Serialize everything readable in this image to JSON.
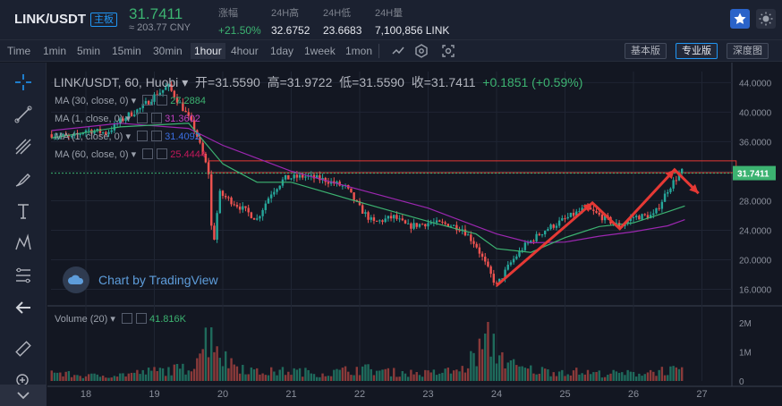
{
  "header": {
    "pair": "LINK/USDT",
    "board": "主板",
    "price": "31.7411",
    "cny": "≈ 203.77 CNY",
    "stats": [
      {
        "label": "涨幅",
        "value": "+21.50%",
        "up": true
      },
      {
        "label": "24H高",
        "value": "32.6752",
        "up": false
      },
      {
        "label": "24H低",
        "value": "23.6683",
        "up": false
      },
      {
        "label": "24H量",
        "value": "7,100,856 LINK",
        "up": false
      }
    ]
  },
  "toolbar": {
    "timeframes": [
      "Time",
      "1min",
      "5min",
      "15min",
      "30min",
      "1hour",
      "4hour",
      "1day",
      "1week",
      "1mon"
    ],
    "active_timeframe": "1hour",
    "modes": [
      "基本版",
      "专业版",
      "深度图"
    ],
    "active_mode": "专业版"
  },
  "legend": {
    "symbol": "LINK/USDT, 60, Huobi",
    "open_label": "开=",
    "open": "31.5590",
    "high_label": "高=",
    "high": "31.9722",
    "low_label": "低=",
    "low": "31.5590",
    "close_label": "收=",
    "close": "31.7411",
    "change": "+0.1851 (+0.59%)"
  },
  "ma_rows": [
    {
      "label": "MA (30, close, 0)",
      "value": "27.2884",
      "color": "#3cb371"
    },
    {
      "label": "MA (1, close, 0)",
      "value": "31.3602",
      "color": "#c040c0"
    },
    {
      "label": "MA (1, close, 0)",
      "value": "31.4092",
      "color": "#3a6ee0"
    },
    {
      "label": "MA (60, close, 0)",
      "value": "25.4444",
      "color": "#c2185b"
    }
  ],
  "volume_legend": {
    "label": "Volume (20)",
    "value": "41.816K"
  },
  "watermark": "Chart by TradingView",
  "colors": {
    "up": "#26a69a",
    "down": "#ef5350",
    "price_line": "#3cb371",
    "annotation": "#e53935",
    "grid": "#1f2533"
  },
  "chart_data": {
    "type": "candlestick",
    "title": "LINK/USDT, 60, Huobi",
    "x_ticks": [
      "18",
      "19",
      "20",
      "21",
      "22",
      "23",
      "24",
      "25",
      "26",
      "27"
    ],
    "y_ticks": [
      "44.0000",
      "40.0000",
      "36.0000",
      "32.0000",
      "28.0000",
      "24.0000",
      "20.0000",
      "16.0000"
    ],
    "ylim": [
      14.0,
      45.5
    ],
    "volume_ticks": [
      "2M",
      "1M",
      "0"
    ],
    "volume_ylim": [
      0,
      2500000
    ],
    "last_price": "31.7411",
    "series_close_path": [
      [
        17.5,
        37.0
      ],
      [
        17.8,
        36.5
      ],
      [
        18.0,
        37.6
      ],
      [
        18.3,
        37.2
      ],
      [
        18.6,
        39.5
      ],
      [
        18.8,
        40.5
      ],
      [
        19.0,
        42.2
      ],
      [
        19.2,
        43.5
      ],
      [
        19.4,
        40.8
      ],
      [
        19.6,
        37.5
      ],
      [
        19.8,
        31.5
      ],
      [
        19.85,
        21.0
      ],
      [
        19.95,
        29.0
      ],
      [
        20.2,
        27.5
      ],
      [
        20.5,
        25.5
      ],
      [
        20.7,
        29.0
      ],
      [
        20.9,
        31.0
      ],
      [
        21.2,
        31.3
      ],
      [
        21.5,
        30.8
      ],
      [
        21.8,
        29.8
      ],
      [
        22.0,
        27.0
      ],
      [
        22.2,
        25.0
      ],
      [
        22.5,
        25.8
      ],
      [
        22.7,
        24.5
      ],
      [
        23.0,
        25.0
      ],
      [
        23.3,
        24.8
      ],
      [
        23.5,
        24.2
      ],
      [
        23.7,
        22.0
      ],
      [
        23.9,
        18.2
      ],
      [
        24.0,
        16.5
      ],
      [
        24.2,
        19.5
      ],
      [
        24.4,
        21.8
      ],
      [
        24.7,
        24.0
      ],
      [
        25.0,
        25.5
      ],
      [
        25.3,
        27.0
      ],
      [
        25.5,
        26.0
      ],
      [
        25.8,
        24.5
      ],
      [
        26.0,
        25.8
      ],
      [
        26.3,
        26.0
      ],
      [
        26.5,
        29.5
      ],
      [
        26.7,
        32.0
      ],
      [
        26.75,
        31.74
      ]
    ],
    "ma30_path": [
      [
        17.5,
        36.5
      ],
      [
        18.5,
        38.0
      ],
      [
        19.5,
        38.5
      ],
      [
        20.0,
        33.0
      ],
      [
        20.5,
        30.5
      ],
      [
        21.0,
        30.5
      ],
      [
        22.0,
        27.8
      ],
      [
        23.0,
        25.2
      ],
      [
        23.7,
        23.5
      ],
      [
        24.0,
        21.5
      ],
      [
        24.5,
        21.0
      ],
      [
        25.0,
        23.0
      ],
      [
        25.5,
        24.5
      ],
      [
        26.0,
        25.0
      ],
      [
        26.5,
        26.5
      ],
      [
        26.75,
        27.29
      ]
    ],
    "ma60_path": [
      [
        17.5,
        37.5
      ],
      [
        18.5,
        38.5
      ],
      [
        19.5,
        37.8
      ],
      [
        20.0,
        35.5
      ],
      [
        21.0,
        32.0
      ],
      [
        22.0,
        29.5
      ],
      [
        23.0,
        27.0
      ],
      [
        24.0,
        23.5
      ],
      [
        24.5,
        22.3
      ],
      [
        25.0,
        22.4
      ],
      [
        25.5,
        23.2
      ],
      [
        26.0,
        23.8
      ],
      [
        26.5,
        24.6
      ],
      [
        26.75,
        25.44
      ]
    ],
    "annotation_zigzag": [
      [
        24.0,
        16.5
      ],
      [
        25.4,
        27.7
      ],
      [
        25.8,
        24.2
      ],
      [
        26.6,
        32.2
      ],
      [
        26.95,
        29.0
      ]
    ],
    "resistance_zone": {
      "x": [
        19.8,
        27.5
      ],
      "y": [
        31.8,
        33.4
      ]
    },
    "volume": [
      [
        17.6,
        300000
      ],
      [
        18.0,
        200000
      ],
      [
        18.5,
        250000
      ],
      [
        19.0,
        400000
      ],
      [
        19.5,
        500000
      ],
      [
        19.85,
        2100000
      ],
      [
        20.0,
        900000
      ],
      [
        20.5,
        350000
      ],
      [
        21.0,
        400000
      ],
      [
        21.5,
        300000
      ],
      [
        22.0,
        500000
      ],
      [
        22.5,
        350000
      ],
      [
        23.0,
        300000
      ],
      [
        23.5,
        450000
      ],
      [
        23.9,
        1700000
      ],
      [
        24.0,
        1200000
      ],
      [
        24.3,
        500000
      ],
      [
        24.7,
        400000
      ],
      [
        25.0,
        400000
      ],
      [
        25.5,
        300000
      ],
      [
        26.0,
        300000
      ],
      [
        26.5,
        450000
      ],
      [
        26.75,
        350000
      ]
    ]
  }
}
